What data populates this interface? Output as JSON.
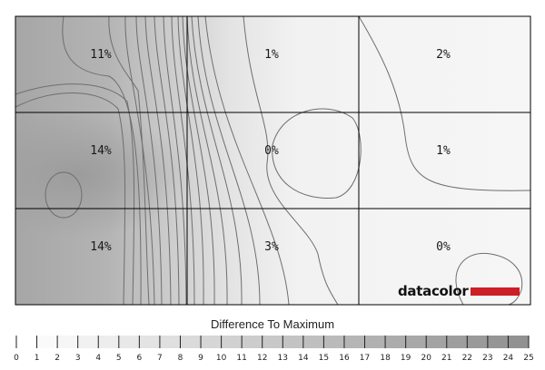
{
  "chart_data": {
    "type": "heatmap",
    "grid": {
      "rows": 3,
      "cols": 3
    },
    "cells": [
      [
        "11%",
        "1%",
        "2%"
      ],
      [
        "14%",
        "0%",
        "1%"
      ],
      [
        "14%",
        "3%",
        "0%"
      ]
    ],
    "values": [
      [
        11,
        1,
        2
      ],
      [
        14,
        0,
        1
      ],
      [
        14,
        3,
        0
      ]
    ],
    "scale_title": "Difference To Maximum",
    "scale_ticks": [
      "0",
      "1",
      "2",
      "3",
      "4",
      "5",
      "6",
      "7",
      "8",
      "9",
      "10",
      "11",
      "12",
      "13",
      "14",
      "15",
      "16",
      "17",
      "18",
      "19",
      "20",
      "21",
      "22",
      "23",
      "24",
      "25"
    ],
    "scale_range": [
      0,
      25
    ],
    "color_low": "#ffffff",
    "color_high": "#8c8c8c",
    "brand": "datacolor",
    "brand_color": "#cc1f27"
  }
}
